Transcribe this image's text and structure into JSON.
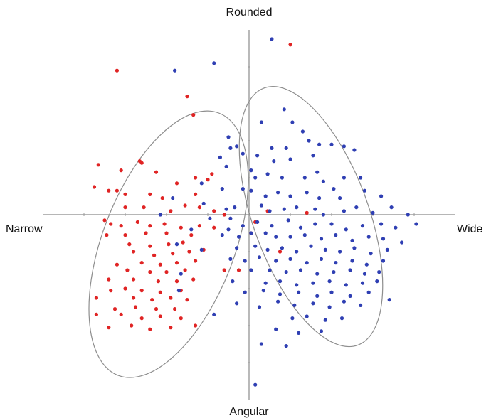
{
  "chart_data": {
    "type": "scatter",
    "title": "",
    "axis_labels": {
      "top": "Rounded",
      "bottom": "Angular",
      "left": "Narrow",
      "right": "Wide"
    },
    "xlim": [
      -1.0,
      1.0
    ],
    "ylim": [
      -1.0,
      1.0
    ],
    "grid": false,
    "legend": "none",
    "colors": {
      "series_red": "#e02424",
      "series_blue": "#2f3fb3",
      "axis": "#8b8b8b",
      "ellipse": "#8e8e8e",
      "text": "#111111"
    },
    "series": [
      {
        "color_key": "series_red",
        "points": [
          [
            -0.64,
            0.78
          ],
          [
            -0.3,
            0.64
          ],
          [
            -0.27,
            0.54
          ],
          [
            0.2,
            0.92
          ],
          [
            -0.53,
            0.29
          ],
          [
            -0.52,
            0.28
          ],
          [
            -0.73,
            0.27
          ],
          [
            -0.62,
            0.24
          ],
          [
            -0.45,
            0.23
          ],
          [
            -0.75,
            0.15
          ],
          [
            -0.68,
            0.13
          ],
          [
            -0.64,
            0.13
          ],
          [
            -0.6,
            0.11
          ],
          [
            -0.48,
            0.11
          ],
          [
            -0.42,
            0.09
          ],
          [
            -0.26,
            0.11
          ],
          [
            -0.35,
            0.17
          ],
          [
            -0.26,
            0.2
          ],
          [
            -0.2,
            0.19
          ],
          [
            -0.18,
            0.22
          ],
          [
            -0.6,
            0.04
          ],
          [
            -0.51,
            0.04
          ],
          [
            -0.38,
            0.02
          ],
          [
            -0.31,
            0.05
          ],
          [
            -0.24,
            0.04
          ],
          [
            -0.17,
            0.02
          ],
          [
            -0.12,
            0.0
          ],
          [
            -0.7,
            -0.03
          ],
          [
            -0.67,
            -0.05
          ],
          [
            -0.62,
            -0.06
          ],
          [
            -0.54,
            -0.04
          ],
          [
            -0.48,
            -0.06
          ],
          [
            -0.41,
            -0.05
          ],
          [
            -0.33,
            -0.07
          ],
          [
            -0.24,
            -0.06
          ],
          [
            -0.17,
            -0.07
          ],
          [
            -0.69,
            -0.11
          ],
          [
            -0.6,
            -0.11
          ],
          [
            -0.5,
            -0.1
          ],
          [
            -0.4,
            -0.1
          ],
          [
            -0.28,
            -0.11
          ],
          [
            -0.58,
            -0.16
          ],
          [
            -0.48,
            -0.17
          ],
          [
            -0.39,
            -0.16
          ],
          [
            -0.32,
            -0.15
          ],
          [
            -0.56,
            -0.2
          ],
          [
            -0.46,
            -0.22
          ],
          [
            -0.37,
            -0.21
          ],
          [
            -0.29,
            -0.2
          ],
          [
            -0.22,
            -0.19
          ],
          [
            -0.64,
            -0.27
          ],
          [
            -0.52,
            -0.26
          ],
          [
            -0.43,
            -0.27
          ],
          [
            -0.35,
            -0.26
          ],
          [
            -0.26,
            -0.25
          ],
          [
            -0.59,
            -0.3
          ],
          [
            -0.48,
            -0.31
          ],
          [
            -0.4,
            -0.31
          ],
          [
            -0.31,
            -0.3
          ],
          [
            -0.68,
            -0.35
          ],
          [
            -0.56,
            -0.35
          ],
          [
            -0.44,
            -0.36
          ],
          [
            -0.35,
            -0.36
          ],
          [
            -0.27,
            -0.35
          ],
          [
            -0.67,
            -0.41
          ],
          [
            -0.6,
            -0.4
          ],
          [
            -0.52,
            -0.41
          ],
          [
            -0.43,
            -0.42
          ],
          [
            -0.33,
            -0.41
          ],
          [
            -0.74,
            -0.45
          ],
          [
            -0.56,
            -0.45
          ],
          [
            -0.47,
            -0.46
          ],
          [
            -0.38,
            -0.45
          ],
          [
            -0.3,
            -0.46
          ],
          [
            -0.65,
            -0.51
          ],
          [
            -0.55,
            -0.5
          ],
          [
            -0.45,
            -0.51
          ],
          [
            -0.36,
            -0.51
          ],
          [
            -0.74,
            -0.54
          ],
          [
            -0.62,
            -0.54
          ],
          [
            -0.52,
            -0.56
          ],
          [
            -0.43,
            -0.55
          ],
          [
            -0.33,
            -0.56
          ],
          [
            -0.68,
            -0.61
          ],
          [
            -0.57,
            -0.6
          ],
          [
            -0.48,
            -0.62
          ],
          [
            -0.38,
            -0.61
          ],
          [
            -0.26,
            -0.6
          ],
          [
            -0.12,
            -0.3
          ],
          [
            -0.05,
            -0.3
          ],
          [
            0.01,
            -0.1
          ],
          [
            0.03,
            -0.04
          ],
          [
            0.09,
            0.02
          ],
          [
            0.28,
            0.01
          ],
          [
            0.15,
            -0.2
          ]
        ]
      },
      {
        "color_key": "series_blue",
        "points": [
          [
            0.11,
            0.95
          ],
          [
            -0.36,
            0.78
          ],
          [
            -0.17,
            0.82
          ],
          [
            0.17,
            0.57
          ],
          [
            0.06,
            0.5
          ],
          [
            0.21,
            0.5
          ],
          [
            0.26,
            0.45
          ],
          [
            0.29,
            0.4
          ],
          [
            0.34,
            0.38
          ],
          [
            0.11,
            0.36
          ],
          [
            0.18,
            0.36
          ],
          [
            0.4,
            0.38
          ],
          [
            0.46,
            0.37
          ],
          [
            0.51,
            0.35
          ],
          [
            -0.1,
            0.42
          ],
          [
            -0.09,
            0.36
          ],
          [
            -0.06,
            0.37
          ],
          [
            -0.03,
            0.33
          ],
          [
            0.04,
            0.32
          ],
          [
            0.12,
            0.29
          ],
          [
            0.2,
            0.3
          ],
          [
            0.31,
            0.32
          ],
          [
            -0.14,
            0.31
          ],
          [
            -0.11,
            0.26
          ],
          [
            0.01,
            0.24
          ],
          [
            0.03,
            0.2
          ],
          [
            0.09,
            0.22
          ],
          [
            0.16,
            0.2
          ],
          [
            0.27,
            0.2
          ],
          [
            0.33,
            0.23
          ],
          [
            0.36,
            0.18
          ],
          [
            0.46,
            0.2
          ],
          [
            0.54,
            0.2
          ],
          [
            -0.23,
            0.17
          ],
          [
            -0.13,
            0.14
          ],
          [
            -0.03,
            0.14
          ],
          [
            0.01,
            0.13
          ],
          [
            0.08,
            0.1
          ],
          [
            0.14,
            0.12
          ],
          [
            0.2,
            0.1
          ],
          [
            0.28,
            0.12
          ],
          [
            0.34,
            0.09
          ],
          [
            0.41,
            0.14
          ],
          [
            0.44,
            0.09
          ],
          [
            0.56,
            0.13
          ],
          [
            0.64,
            0.1
          ],
          [
            -0.37,
            0.09
          ],
          [
            -0.22,
            0.06
          ],
          [
            -0.11,
            0.03
          ],
          [
            -0.07,
            0.04
          ],
          [
            0.06,
            0.05
          ],
          [
            0.1,
            0.02
          ],
          [
            0.17,
            0.03
          ],
          [
            0.23,
            0.04
          ],
          [
            0.32,
            0.03
          ],
          [
            0.36,
            0.0
          ],
          [
            0.46,
            0.02
          ],
          [
            0.52,
            0.04
          ],
          [
            0.6,
            0.01
          ],
          [
            0.69,
            0.04
          ],
          [
            0.77,
            0.0
          ],
          [
            -0.19,
            -0.02
          ],
          [
            -0.09,
            -0.02
          ],
          [
            -0.03,
            -0.06
          ],
          [
            0.04,
            -0.04
          ],
          [
            0.11,
            -0.06
          ],
          [
            0.19,
            -0.03
          ],
          [
            0.25,
            -0.07
          ],
          [
            0.32,
            -0.05
          ],
          [
            0.4,
            -0.05
          ],
          [
            0.47,
            -0.08
          ],
          [
            0.55,
            -0.06
          ],
          [
            0.64,
            -0.05
          ],
          [
            0.71,
            -0.07
          ],
          [
            0.81,
            -0.05
          ],
          [
            -0.13,
            -0.11
          ],
          [
            -0.05,
            -0.12
          ],
          [
            0.01,
            -0.1
          ],
          [
            0.08,
            -0.1
          ],
          [
            0.13,
            -0.12
          ],
          [
            0.2,
            -0.12
          ],
          [
            0.27,
            -0.11
          ],
          [
            0.35,
            -0.13
          ],
          [
            0.42,
            -0.11
          ],
          [
            0.5,
            -0.14
          ],
          [
            0.58,
            -0.12
          ],
          [
            0.65,
            -0.13
          ],
          [
            0.74,
            -0.15
          ],
          [
            -0.23,
            -0.19
          ],
          [
            -0.06,
            -0.18
          ],
          [
            0.03,
            -0.17
          ],
          [
            0.09,
            -0.19
          ],
          [
            0.16,
            -0.18
          ],
          [
            0.23,
            -0.2
          ],
          [
            0.3,
            -0.17
          ],
          [
            0.37,
            -0.19
          ],
          [
            0.44,
            -0.2
          ],
          [
            0.51,
            -0.18
          ],
          [
            0.59,
            -0.21
          ],
          [
            0.67,
            -0.19
          ],
          [
            -0.09,
            -0.24
          ],
          [
            -0.02,
            -0.25
          ],
          [
            0.05,
            -0.23
          ],
          [
            0.13,
            -0.25
          ],
          [
            0.2,
            -0.24
          ],
          [
            0.28,
            -0.26
          ],
          [
            0.35,
            -0.24
          ],
          [
            0.42,
            -0.26
          ],
          [
            0.5,
            -0.25
          ],
          [
            0.57,
            -0.27
          ],
          [
            0.65,
            -0.25
          ],
          [
            -0.35,
            -0.16
          ],
          [
            0.01,
            -0.3
          ],
          [
            0.1,
            -0.3
          ],
          [
            0.18,
            -0.31
          ],
          [
            0.25,
            -0.3
          ],
          [
            0.33,
            -0.32
          ],
          [
            0.41,
            -0.31
          ],
          [
            0.49,
            -0.3
          ],
          [
            0.56,
            -0.32
          ],
          [
            0.63,
            -0.31
          ],
          [
            -0.08,
            -0.36
          ],
          [
            0.08,
            -0.37
          ],
          [
            0.15,
            -0.36
          ],
          [
            0.23,
            -0.38
          ],
          [
            0.31,
            -0.37
          ],
          [
            0.39,
            -0.36
          ],
          [
            0.47,
            -0.38
          ],
          [
            0.55,
            -0.37
          ],
          [
            0.62,
            -0.36
          ],
          [
            -0.34,
            -0.41
          ],
          [
            -0.02,
            -0.42
          ],
          [
            0.07,
            -0.41
          ],
          [
            0.15,
            -0.43
          ],
          [
            0.24,
            -0.42
          ],
          [
            0.33,
            -0.44
          ],
          [
            0.4,
            -0.42
          ],
          [
            0.49,
            -0.44
          ],
          [
            0.58,
            -0.42
          ],
          [
            -0.06,
            -0.48
          ],
          [
            0.05,
            -0.5
          ],
          [
            0.14,
            -0.47
          ],
          [
            0.22,
            -0.49
          ],
          [
            0.31,
            -0.48
          ],
          [
            0.39,
            -0.5
          ],
          [
            0.46,
            -0.47
          ],
          [
            0.54,
            -0.49
          ],
          [
            0.68,
            -0.46
          ],
          [
            -0.17,
            -0.54
          ],
          [
            0.21,
            -0.56
          ],
          [
            0.28,
            -0.55
          ],
          [
            0.37,
            -0.57
          ],
          [
            0.45,
            -0.56
          ],
          [
            0.13,
            -0.62
          ],
          [
            0.24,
            -0.64
          ],
          [
            0.35,
            -0.63
          ],
          [
            0.06,
            -0.7
          ],
          [
            0.18,
            -0.71
          ],
          [
            0.03,
            -0.92
          ],
          [
            -0.43,
            0.0
          ],
          [
            -0.28,
            -0.08
          ],
          [
            -0.33,
            -0.32
          ],
          [
            -0.1,
            -0.08
          ]
        ]
      }
    ],
    "clusters": [
      {
        "color_key": "ellipse",
        "center": [
          -0.39,
          -0.16
        ],
        "radius_x": 0.32,
        "radius_y": 0.76,
        "angle_deg": 21
      },
      {
        "color_key": "ellipse",
        "center": [
          0.3,
          -0.01
        ],
        "radius_x": 0.28,
        "radius_y": 0.74,
        "angle_deg": -20
      }
    ]
  }
}
